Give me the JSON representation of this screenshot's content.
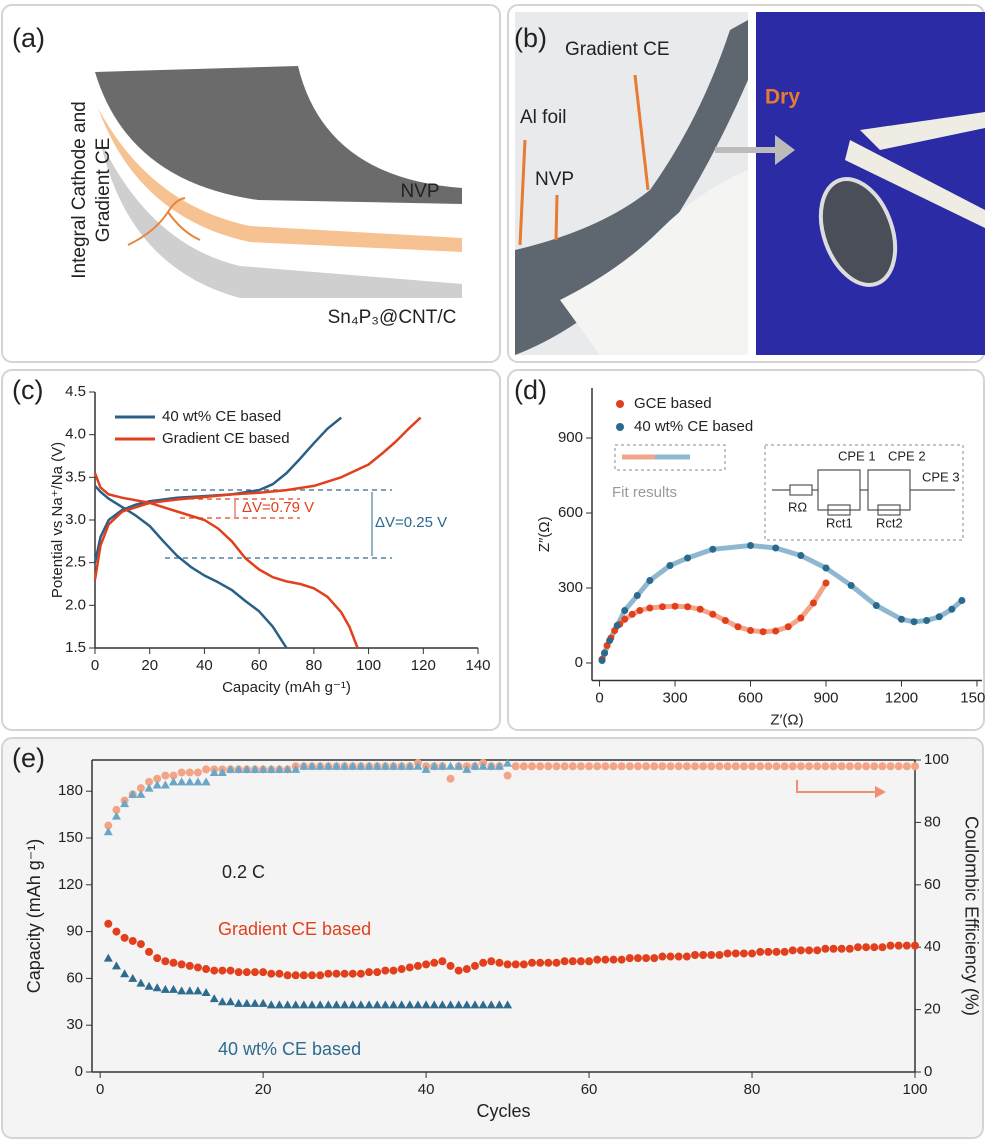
{
  "panel_a": {
    "label": "(a)",
    "side_label": [
      "Integral Cathode and",
      "Gradient CE"
    ],
    "layers": [
      "NVP",
      "Sn₄P₃@CNT/C"
    ]
  },
  "panel_b": {
    "label": "(b)",
    "texts": [
      "Gradient CE",
      "Al foil",
      "NVP",
      "Dry"
    ]
  },
  "chart_data": [
    {
      "type": "line",
      "panel_label": "(c)",
      "xlabel": "Capacity (mAh g⁻¹)",
      "ylabel": "Potential vs Na⁺/Na (V)",
      "xlim": [
        0,
        140
      ],
      "xticks": [
        0,
        20,
        40,
        60,
        80,
        100,
        120,
        140
      ],
      "ylim": [
        1.5,
        4.5
      ],
      "yticks": [
        1.5,
        {
          "value": 2,
          "label": "2.0"
        },
        2.5,
        {
          "value": 3,
          "label": "3.0"
        },
        3.5,
        {
          "value": 4,
          "label": "4.0"
        },
        4.5
      ],
      "annotations": [
        "ΔV=0.79 V",
        "ΔV=0.25 V"
      ],
      "series": [
        {
          "name": "40 wt% CE based",
          "color": "#2a5f86",
          "x": [
            0,
            2,
            5,
            10,
            15,
            20,
            25,
            30,
            35,
            40,
            45,
            50,
            55,
            60,
            65,
            70,
            null,
            0,
            2,
            5,
            10,
            15,
            20,
            30,
            40,
            50,
            60,
            65,
            70,
            75,
            80,
            85,
            90
          ],
          "values": [
            3.4,
            3.33,
            3.25,
            3.15,
            3.05,
            2.93,
            2.75,
            2.58,
            2.45,
            2.35,
            2.27,
            2.18,
            2.05,
            1.93,
            1.75,
            1.5,
            null,
            2.5,
            2.8,
            3.0,
            3.12,
            3.18,
            3.22,
            3.26,
            3.28,
            3.3,
            3.35,
            3.42,
            3.55,
            3.72,
            3.9,
            4.07,
            4.2
          ]
        },
        {
          "name": "Gradient CE based",
          "color": "#e2401c",
          "x": [
            0,
            2,
            5,
            10,
            20,
            30,
            40,
            45,
            50,
            55,
            60,
            65,
            70,
            75,
            80,
            85,
            90,
            93,
            96,
            null,
            0,
            2,
            5,
            10,
            20,
            30,
            40,
            50,
            60,
            70,
            80,
            90,
            100,
            105,
            110,
            115,
            119
          ],
          "values": [
            3.55,
            3.38,
            3.3,
            3.26,
            3.2,
            3.1,
            3.0,
            2.9,
            2.75,
            2.55,
            2.42,
            2.33,
            2.28,
            2.25,
            2.2,
            2.1,
            1.92,
            1.75,
            1.5,
            null,
            2.3,
            2.7,
            2.95,
            3.1,
            3.2,
            3.24,
            3.27,
            3.3,
            3.32,
            3.35,
            3.4,
            3.5,
            3.65,
            3.78,
            3.92,
            4.08,
            4.2
          ]
        }
      ]
    },
    {
      "type": "scatter",
      "panel_label": "(d)",
      "xlabel": "Z′(Ω)",
      "ylabel": "Z″(Ω)",
      "xlim": [
        -30,
        1520
      ],
      "xticks": [
        0,
        300,
        600,
        900,
        1200,
        1500
      ],
      "ylim": [
        -70,
        1100
      ],
      "yticks": [
        0,
        300,
        600,
        900
      ],
      "fit_label": "Fit results",
      "circuit": {
        "elements": [
          "CPE 1",
          "CPE 2",
          "CPE 3"
        ],
        "resistors": [
          "RΩ",
          "Rct1",
          "Rct2"
        ]
      },
      "series": [
        {
          "name": "GCE based",
          "color": "#e2401c",
          "fit_color": "#f2a58a",
          "marker": "circle",
          "fit": true,
          "x": [
            10,
            20,
            30,
            45,
            60,
            80,
            100,
            130,
            160,
            200,
            250,
            300,
            350,
            400,
            450,
            500,
            550,
            600,
            650,
            700,
            750,
            800,
            850,
            900
          ],
          "values": [
            15,
            40,
            70,
            100,
            130,
            155,
            175,
            195,
            210,
            220,
            225,
            227,
            225,
            215,
            195,
            170,
            145,
            130,
            125,
            128,
            145,
            180,
            240,
            320
          ]
        },
        {
          "name": "40 wt% CE based",
          "color": "#2a6a8e",
          "fit_color": "#8fb8d0",
          "marker": "circle",
          "fit": true,
          "x": [
            10,
            20,
            40,
            70,
            100,
            150,
            200,
            280,
            350,
            450,
            600,
            700,
            800,
            900,
            1000,
            1100,
            1200,
            1250,
            1300,
            1350,
            1400,
            1440
          ],
          "values": [
            10,
            40,
            90,
            150,
            210,
            270,
            330,
            390,
            420,
            455,
            470,
            460,
            430,
            380,
            310,
            230,
            175,
            165,
            170,
            185,
            215,
            250
          ]
        }
      ]
    },
    {
      "type": "scatter",
      "panel_label": "(e)",
      "xlabel": "Cycles",
      "ylabel": "Capacity (mAh g⁻¹)",
      "y2label": "Coulombic Efficiency (%)",
      "annotations": [
        "0.2 C"
      ],
      "xlim": [
        -1,
        100
      ],
      "xticks": [
        0,
        20,
        40,
        60,
        80,
        100
      ],
      "ylim": [
        0,
        200
      ],
      "yticks": [
        0,
        30,
        60,
        90,
        120,
        150,
        180
      ],
      "y2lim": [
        0,
        100
      ],
      "y2ticks": [
        0,
        20,
        40,
        60,
        80,
        100
      ],
      "x": [
        1,
        2,
        3,
        4,
        5,
        6,
        7,
        8,
        9,
        10,
        11,
        12,
        13,
        14,
        15,
        16,
        17,
        18,
        19,
        20,
        21,
        22,
        23,
        24,
        25,
        26,
        27,
        28,
        29,
        30,
        31,
        32,
        33,
        34,
        35,
        36,
        37,
        38,
        39,
        40,
        41,
        42,
        43,
        44,
        45,
        46,
        47,
        48,
        49,
        50,
        51,
        52,
        53,
        54,
        55,
        56,
        57,
        58,
        59,
        60,
        61,
        62,
        63,
        64,
        65,
        66,
        67,
        68,
        69,
        70,
        71,
        72,
        73,
        74,
        75,
        76,
        77,
        78,
        79,
        80,
        81,
        82,
        83,
        84,
        85,
        86,
        87,
        88,
        89,
        90,
        91,
        92,
        93,
        94,
        95,
        96,
        97,
        98,
        99,
        100
      ],
      "series": [
        {
          "name": "Gradient CE based",
          "color": "#e2401c",
          "marker": "circle",
          "values": [
            95,
            90,
            86,
            84,
            82,
            77,
            73,
            71,
            70,
            69,
            68,
            67,
            66,
            65,
            65,
            65,
            64,
            64,
            64,
            64,
            63,
            63,
            62,
            62,
            62,
            62,
            62,
            63,
            63,
            63,
            63,
            63,
            64,
            64,
            65,
            65,
            66,
            67,
            68,
            69,
            70,
            71,
            68,
            65,
            66,
            68,
            70,
            71,
            70,
            69,
            69,
            69,
            70,
            70,
            70,
            70,
            71,
            71,
            71,
            71,
            72,
            72,
            72,
            72,
            73,
            73,
            73,
            73,
            74,
            74,
            74,
            74,
            75,
            75,
            75,
            75,
            76,
            76,
            76,
            76,
            77,
            77,
            77,
            77,
            78,
            78,
            78,
            78,
            79,
            79,
            79,
            79,
            80,
            80,
            80,
            80,
            81,
            81,
            81,
            81
          ]
        },
        {
          "name": "40 wt% CE based",
          "color": "#2e6b8e",
          "marker": "triangle",
          "values": [
            73,
            68,
            63,
            60,
            57,
            55,
            54,
            53,
            53,
            52,
            52,
            52,
            51,
            47,
            45,
            45,
            44,
            44,
            44,
            44,
            43,
            43,
            43,
            43,
            43,
            43,
            43,
            43,
            43,
            43,
            43,
            43,
            43,
            43,
            43,
            43,
            43,
            43,
            43,
            43,
            43,
            43,
            43,
            43,
            43,
            43,
            43,
            43,
            43,
            43,
            null,
            null,
            null,
            null,
            null,
            null,
            null,
            null,
            null,
            null,
            null,
            null,
            null,
            null,
            null,
            null,
            null,
            null,
            null,
            null,
            null,
            null,
            null,
            null,
            null,
            null,
            null,
            null,
            null,
            null,
            null,
            null,
            null,
            null,
            null,
            null,
            null,
            null,
            null,
            null,
            null,
            null,
            null,
            null,
            null,
            null,
            null,
            null,
            null,
            null
          ]
        },
        {
          "color": "#f3a486",
          "marker": "circle",
          "axis": "y2",
          "values": [
            79,
            84,
            87,
            89,
            91,
            93,
            94,
            95,
            95,
            96,
            96,
            96,
            97,
            97,
            97,
            97,
            97,
            97,
            97,
            97,
            97,
            97,
            97,
            98,
            98,
            98,
            98,
            98,
            98,
            98,
            98,
            98,
            98,
            98,
            98,
            98,
            98,
            98,
            99,
            98,
            98,
            98,
            94,
            98,
            98,
            98,
            99,
            98,
            98,
            95,
            98,
            98,
            98,
            98,
            98,
            98,
            98,
            98,
            98,
            98,
            98,
            98,
            98,
            98,
            98,
            98,
            98,
            98,
            98,
            98,
            98,
            98,
            98,
            98,
            98,
            98,
            98,
            98,
            98,
            98,
            98,
            98,
            98,
            98,
            98,
            98,
            98,
            98,
            98,
            98,
            98,
            98,
            98,
            98,
            98,
            98,
            98,
            98,
            98,
            98
          ]
        },
        {
          "color": "#6aa6c6",
          "marker": "triangle",
          "axis": "y2",
          "values": [
            77,
            82,
            86,
            89,
            89,
            91,
            92,
            92,
            93,
            93,
            93,
            93,
            93,
            96,
            96,
            97,
            97,
            97,
            97,
            97,
            97,
            97,
            97,
            97,
            98,
            98,
            98,
            98,
            98,
            98,
            98,
            98,
            98,
            98,
            98,
            98,
            98,
            98,
            98,
            97,
            98,
            98,
            98,
            98,
            97,
            98,
            98,
            98,
            98,
            99,
            null,
            null,
            null,
            null,
            null,
            null,
            null,
            null,
            null,
            null,
            null,
            null,
            null,
            null,
            null,
            null,
            null,
            null,
            null,
            null,
            null,
            null,
            null,
            null,
            null,
            null,
            null,
            null,
            null,
            null,
            null,
            null,
            null,
            null,
            null,
            null,
            null,
            null,
            null,
            null,
            null,
            null,
            null,
            null,
            null,
            null,
            null,
            null,
            null,
            null
          ]
        }
      ]
    }
  ]
}
